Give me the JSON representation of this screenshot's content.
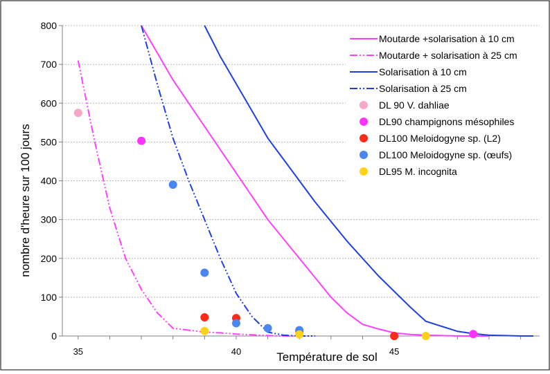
{
  "chart_data": {
    "type": "line",
    "title": "",
    "xlabel": "Température de sol",
    "ylabel": "nombre d'heure sur 100 jours",
    "xlim": [
      34.5,
      49.6
    ],
    "ylim": [
      0,
      800
    ],
    "x_tick_labels": [
      {
        "value": 35,
        "label": "35"
      },
      {
        "value": 40,
        "label": "40"
      },
      {
        "value": 45,
        "label": "45"
      }
    ],
    "y_ticks": [
      0,
      100,
      200,
      300,
      400,
      500,
      600,
      700,
      800
    ],
    "grid": "horizontal",
    "legend_position": "top-right",
    "series": [
      {
        "name": "Moutarde +solarisation à 10 cm",
        "kind": "line",
        "color": "#ff40ff",
        "dash": "solid",
        "x": [
          37.0,
          37.5,
          38.0,
          38.5,
          39.0,
          39.5,
          40.0,
          40.5,
          41.0,
          41.5,
          42.0,
          42.5,
          43.0,
          43.5,
          44.0,
          44.5,
          45.0,
          45.5,
          46.0,
          46.5,
          47.0,
          47.5,
          48.0
        ],
        "y": [
          800,
          730,
          660,
          600,
          540,
          480,
          420,
          360,
          300,
          250,
          200,
          150,
          100,
          60,
          30,
          18,
          8,
          4,
          2,
          1,
          0,
          0,
          0
        ]
      },
      {
        "name": "Moutarde + solarisation à 25 cm",
        "kind": "line",
        "color": "#ff40ff",
        "dash": "dashdotdot",
        "x": [
          35.0,
          35.5,
          36.0,
          36.5,
          37.0,
          37.5,
          38.0,
          38.5,
          39.0,
          39.5,
          40.0,
          40.5,
          41.0,
          41.5,
          42.0
        ],
        "y": [
          710,
          510,
          330,
          200,
          120,
          60,
          20,
          15,
          10,
          8,
          5,
          3,
          1,
          0,
          0
        ]
      },
      {
        "name": "Solarisation à 10 cm",
        "kind": "line",
        "color": "#1f3fdf",
        "dash": "solid",
        "x": [
          39.0,
          39.5,
          40.0,
          40.5,
          41.0,
          41.5,
          42.0,
          42.5,
          43.0,
          43.5,
          44.0,
          44.5,
          45.0,
          45.5,
          46.0,
          46.5,
          47.0,
          47.5,
          48.0,
          48.5,
          49.0,
          49.4
        ],
        "y": [
          800,
          720,
          650,
          580,
          510,
          455,
          400,
          345,
          295,
          245,
          200,
          155,
          115,
          75,
          38,
          25,
          12,
          6,
          2,
          1,
          0,
          0
        ]
      },
      {
        "name": "Solarisation à  25 cm",
        "kind": "line",
        "color": "#1f3fdf",
        "dash": "dashdotdot",
        "x": [
          37.0,
          37.5,
          38.0,
          38.5,
          39.0,
          39.5,
          40.0,
          40.5,
          41.0,
          41.5,
          42.0,
          42.5
        ],
        "y": [
          800,
          650,
          510,
          400,
          300,
          200,
          110,
          50,
          10,
          2,
          0,
          0
        ]
      },
      {
        "name": "DL 90 V. dahliae",
        "kind": "scatter",
        "color": "#f7a8c8",
        "x": [
          35.0
        ],
        "y": [
          575
        ]
      },
      {
        "name": "DL90 champignons mésophiles",
        "kind": "scatter",
        "color": "#ff33ff",
        "x": [
          37.0,
          47.5
        ],
        "y": [
          503,
          5
        ]
      },
      {
        "name": "DL100 Meloidogyne sp. (L2)",
        "kind": "scatter",
        "color": "#ff2a1a",
        "x": [
          39.0,
          40.0,
          42.0,
          45.0
        ],
        "y": [
          48,
          46,
          12,
          0
        ]
      },
      {
        "name": "DL100 Meloidogyne sp. (œufs)",
        "kind": "scatter",
        "color": "#4a86f0",
        "x": [
          38.0,
          39.0,
          40.0,
          41.0,
          42.0
        ],
        "y": [
          390,
          163,
          33,
          20,
          15
        ]
      },
      {
        "name": "DL95 M. incognita",
        "kind": "scatter",
        "color": "#ffd21a",
        "x": [
          39.0,
          42.0,
          46.0
        ],
        "y": [
          13,
          4,
          0
        ]
      }
    ]
  }
}
